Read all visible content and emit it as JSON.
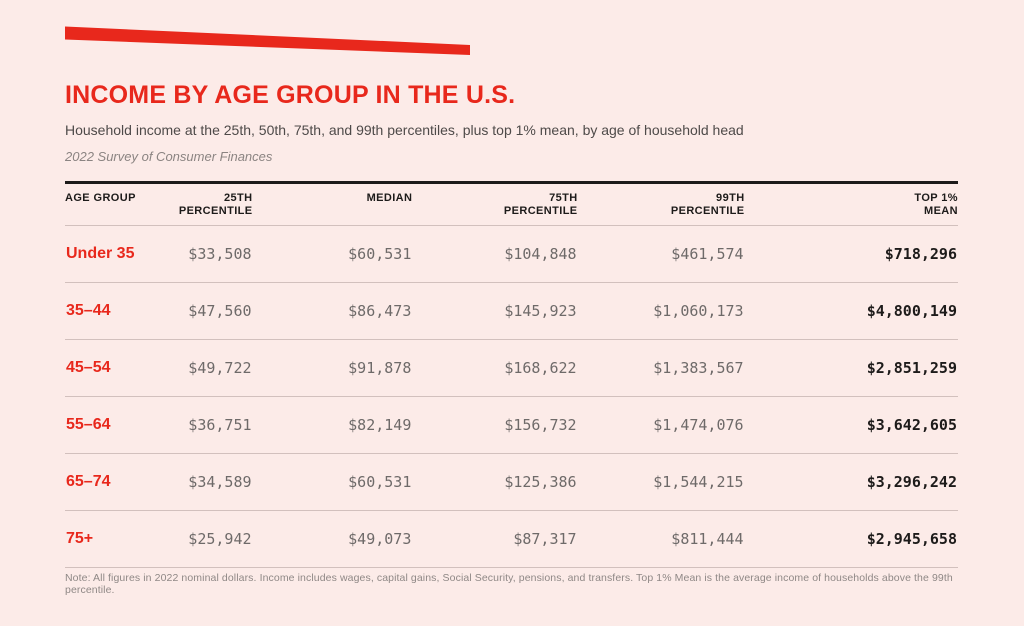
{
  "page": {
    "background": "#fcebe8",
    "accent_red": "#e8281c",
    "text_black": "#1d1b1a",
    "number_gray": "#6e6a69"
  },
  "header": {
    "title": "INCOME BY AGE GROUP IN THE U.S.",
    "subtitle": "Household income at the 25th, 50th, 75th, and 99th percentiles, plus top 1% mean, by age of household head",
    "source": "2022 Survey of Consumer Finances"
  },
  "table": {
    "headers": [
      {
        "top": "AGE GROUP",
        "bottom": ""
      },
      {
        "top": "25TH",
        "bottom": "PERCENTILE"
      },
      {
        "top": "MEDIAN",
        "bottom": ""
      },
      {
        "top": "75TH",
        "bottom": "PERCENTILE"
      },
      {
        "top": "99TH",
        "bottom": "PERCENTILE"
      },
      {
        "top": "TOP 1%",
        "bottom": "MEAN"
      }
    ],
    "rows": [
      {
        "label": "Under 35",
        "p25": "$33,508",
        "median": "$60,531",
        "p75": "$104,848",
        "p99": "$461,574",
        "top1": "$718,296"
      },
      {
        "label": "35–44",
        "p25": "$47,560",
        "median": "$86,473",
        "p75": "$145,923",
        "p99": "$1,060,173",
        "top1": "$4,800,149"
      },
      {
        "label": "45–54",
        "p25": "$49,722",
        "median": "$91,878",
        "p75": "$168,622",
        "p99": "$1,383,567",
        "top1": "$2,851,259"
      },
      {
        "label": "55–64",
        "p25": "$36,751",
        "median": "$82,149",
        "p75": "$156,732",
        "p99": "$1,474,076",
        "top1": "$3,642,605"
      },
      {
        "label": "65–74",
        "p25": "$34,589",
        "median": "$60,531",
        "p75": "$125,386",
        "p99": "$1,544,215",
        "top1": "$3,296,242"
      },
      {
        "label": "75+",
        "p25": "$25,942",
        "median": "$49,073",
        "p75": "$87,317",
        "p99": "$811,444",
        "top1": "$2,945,658"
      }
    ]
  },
  "note": "Note: All figures in 2022 nominal dollars. Income includes wages, capital gains, Social Security, pensions, and transfers. Top 1% Mean is the average income of households above the 99th percentile.",
  "chart_data": {
    "type": "table",
    "title": "INCOME BY AGE GROUP IN THE U.S.",
    "subtitle": "Household income at the 25th, 50th, 75th, and 99th percentiles, plus top 1% mean, by age of household head",
    "source": "2022 Survey of Consumer Finances",
    "categories": [
      "Under 35",
      "35–44",
      "45–54",
      "55–64",
      "65–74",
      "75+"
    ],
    "series": [
      {
        "name": "25th Percentile",
        "values": [
          33508,
          47560,
          49722,
          36751,
          34589,
          25942
        ]
      },
      {
        "name": "Median",
        "values": [
          60531,
          86473,
          91878,
          82149,
          60531,
          49073
        ]
      },
      {
        "name": "75th Percentile",
        "values": [
          104848,
          145923,
          168622,
          156732,
          125386,
          87317
        ]
      },
      {
        "name": "99th Percentile",
        "values": [
          461574,
          1060173,
          1383567,
          1474076,
          1544215,
          811444
        ]
      },
      {
        "name": "Top 1% Mean",
        "values": [
          718296,
          4800149,
          2851259,
          3642605,
          3296242,
          2945658
        ]
      }
    ],
    "note": "All figures in 2022 nominal dollars. Income includes wages, capital gains, Social Security, pensions, and transfers. Top 1% Mean is the average income of households above the 99th percentile."
  }
}
